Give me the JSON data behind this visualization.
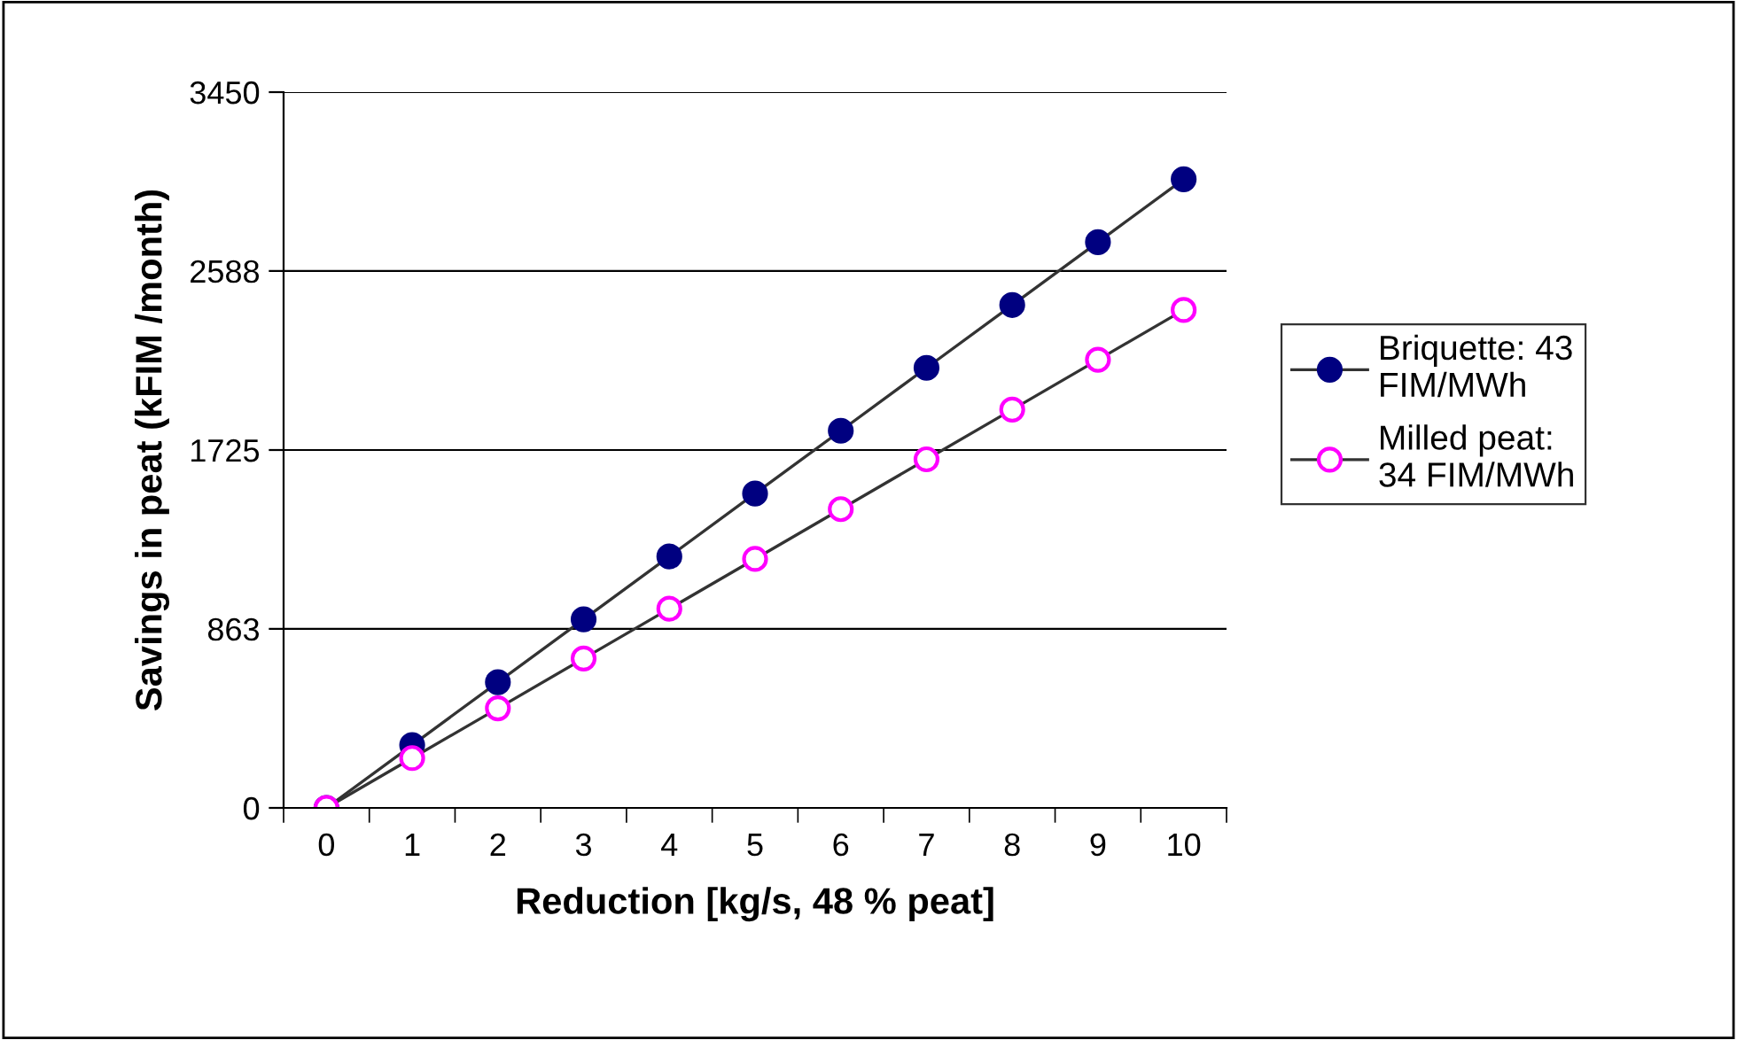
{
  "chart_data": {
    "type": "line",
    "xlabel": "Reduction [kg/s, 48 % peat]",
    "ylabel": "Savings in peat (kFIM /month)",
    "categories": [
      "0",
      "1",
      "2",
      "3",
      "4",
      "5",
      "6",
      "7",
      "8",
      "9",
      "10"
    ],
    "series": [
      {
        "name": "Briquette: 43 FIM/MWh",
        "color": "#000080",
        "values": [
          0,
          303,
          606,
          909,
          1212,
          1515,
          1818,
          2121,
          2424,
          2727,
          3030
        ]
      },
      {
        "name": "Milled peat: 34 FIM/MWh",
        "color": "#ff00ff",
        "values": [
          0,
          240,
          480,
          720,
          960,
          1200,
          1440,
          1680,
          1920,
          2160,
          2400
        ]
      }
    ],
    "ylim": [
      0,
      3450
    ],
    "yticks": [
      0,
      863,
      1725,
      2588,
      3450
    ],
    "grid": "y",
    "legend": "right",
    "marker": "circle",
    "line_style": "solid"
  }
}
